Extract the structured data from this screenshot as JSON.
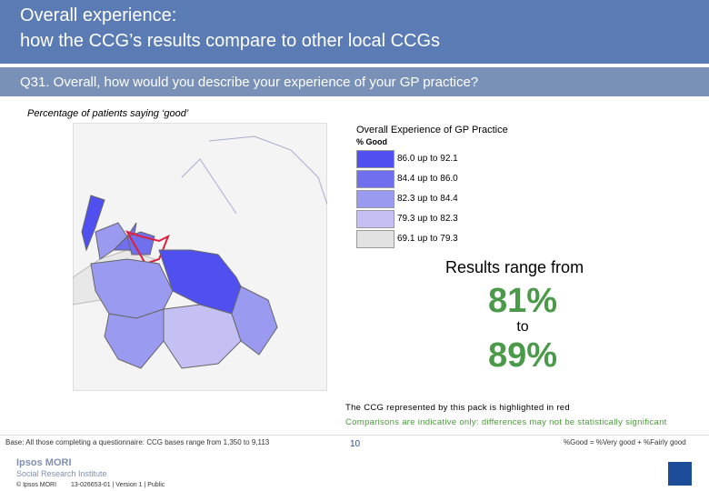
{
  "header": {
    "title_lines": [
      "Overall experience:",
      "how the CCG’s results compare to other local CCGs"
    ]
  },
  "question": "Q31. Overall, how would you describe your experience of your GP practice?",
  "subtitle": "Percentage of patients saying ‘good’",
  "legend": {
    "title": "Overall Experience of GP Practice",
    "subtitle": "% Good",
    "items": [
      {
        "label": "86.0 up to 92.1",
        "color": "#5050f0"
      },
      {
        "label": "84.4 up to 86.0",
        "color": "#7070ee"
      },
      {
        "label": "82.3 up to 84.4",
        "color": "#9a9af0"
      },
      {
        "label": "79.3 up to 82.3",
        "color": "#c4c0f4"
      },
      {
        "label": "69.1 up to 79.3",
        "color": "#e2e2e2"
      }
    ]
  },
  "results": {
    "intro": "Results range from",
    "low": "81%",
    "connector": "to",
    "high": "89%"
  },
  "notes": [
    "The CCG represented by this pack is highlighted in red",
    "Comparisons are indicative only: differences may not be statistically significant"
  ],
  "footer": {
    "base": "Base: All those completing a questionnaire: CCG bases range from 1,350 to 9,113",
    "definition": "%Good = %Very good + %Fairly good",
    "page": "10",
    "brand": "Ipsos MORI",
    "division": "Social Research Institute",
    "copyright": "© Ipsos MORI",
    "reference": "13-026653-01 | Version 1 | Public"
  }
}
